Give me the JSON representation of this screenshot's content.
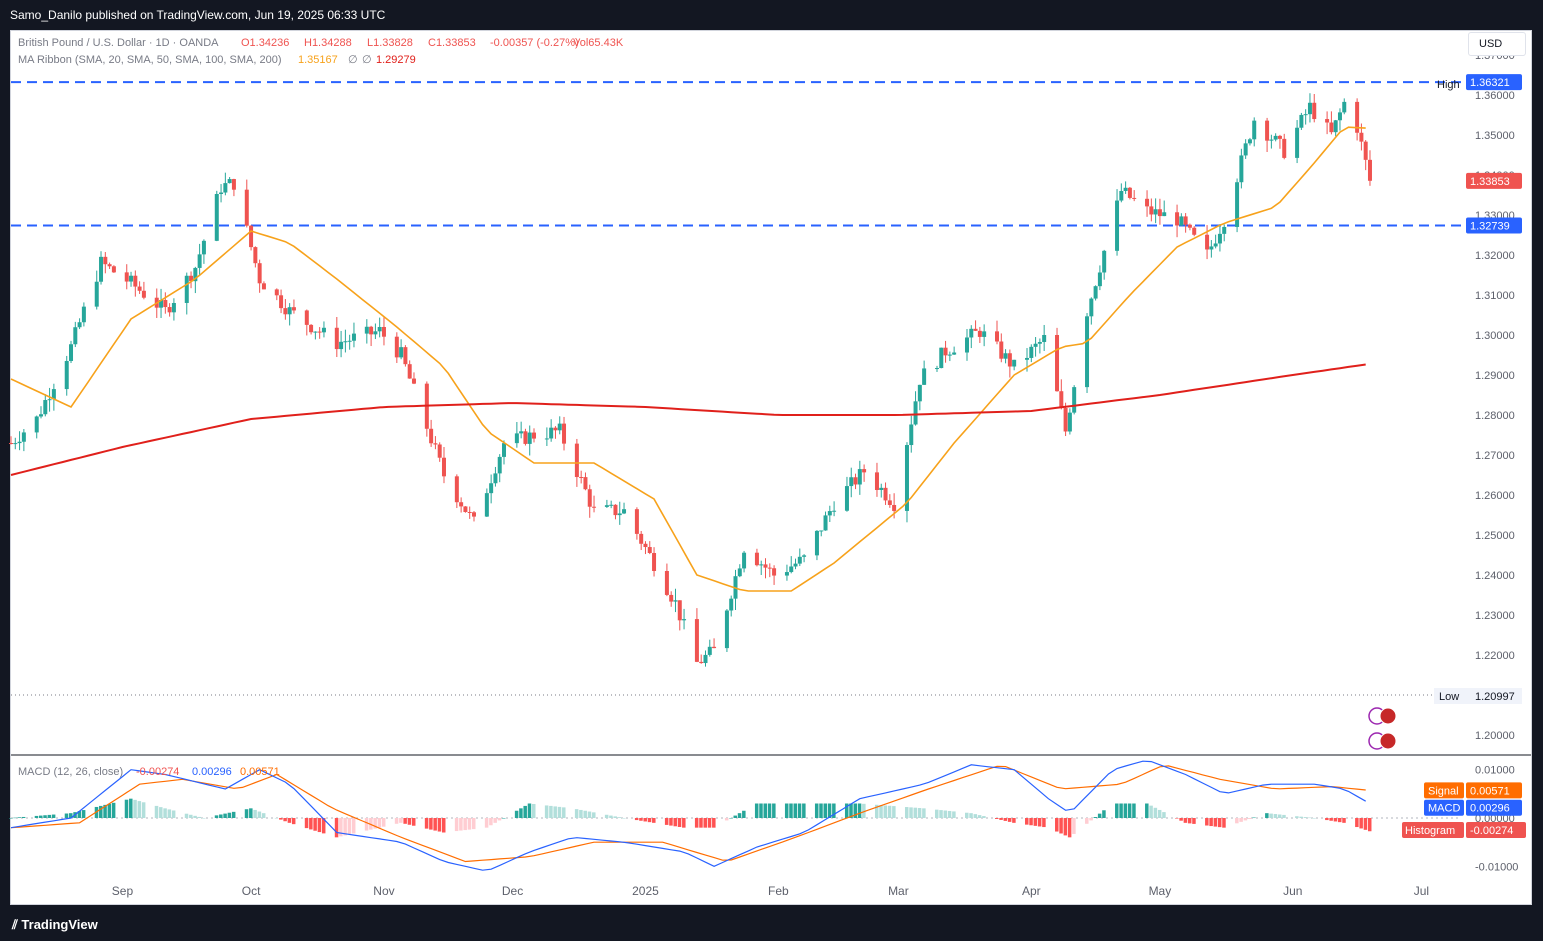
{
  "header": {
    "publisher": "Samo_Danilo published on TradingView.com, Jun 19, 2025 06:33 UTC"
  },
  "footer": {
    "brand": "TradingView"
  },
  "currency_button": "USD",
  "legend": {
    "symbol": "British Pound / U.S. Dollar · 1D · OANDA",
    "o": "O1.34236",
    "h": "H1.34288",
    "l": "L1.33828",
    "c": "C1.33853",
    "chg": "-0.00357 (-0.27%)",
    "vol": "Vol65.43K",
    "ma": "MA Ribbon (SMA, 20, SMA, 50, SMA, 100, SMA, 200)",
    "ma_v1": "1.35167",
    "ma_v2": "∅",
    "ma_v3": "∅",
    "ma_v4": "1.29279",
    "macd": "MACD (12, 26, close)",
    "macd_h": "-0.00274",
    "macd_m": "0.00296",
    "macd_s": "0.00571"
  },
  "colors": {
    "up": "#26a69a",
    "down": "#ef5350",
    "sma20": "#f7a21b",
    "sma200": "#e0201b",
    "macd": "#2962ff",
    "signal": "#ff6d00",
    "level": "#2962ff"
  },
  "chart_data": [
    {
      "type": "candlestick",
      "title": "British Pound / U.S. Dollar · 1D · OANDA",
      "ylim": [
        1.195,
        1.37
      ],
      "yticks": [
        1.2,
        1.21,
        1.22,
        1.23,
        1.24,
        1.25,
        1.26,
        1.27,
        1.28,
        1.29,
        1.3,
        1.31,
        1.32,
        1.33,
        1.34,
        1.35,
        1.36,
        1.37
      ],
      "ytick_labels": [
        "1.20000",
        "1.21000",
        "1.22000",
        "1.23000",
        "1.24000",
        "1.25000",
        "1.26000",
        "1.27000",
        "1.28000",
        "1.29000",
        "1.30000",
        "1.31000",
        "1.32000",
        "1.33000",
        "1.34000",
        "1.35000",
        "1.36000",
        "1.37000"
      ],
      "xticks": [
        "Sep",
        "Oct",
        "Nov",
        "Dec",
        "2025",
        "Feb",
        "Mar",
        "Apr",
        "May",
        "Jun",
        "Jul"
      ],
      "x_range": [
        "2024-08-06",
        "2025-07-10"
      ],
      "close_path": [
        [
          "2024-08-06",
          1.273
        ],
        [
          "2024-08-12",
          1.279
        ],
        [
          "2024-08-20",
          1.297
        ],
        [
          "2024-08-27",
          1.318
        ],
        [
          "2024-09-03",
          1.313
        ],
        [
          "2024-09-11",
          1.306
        ],
        [
          "2024-09-18",
          1.317
        ],
        [
          "2024-09-24",
          1.337
        ],
        [
          "2024-09-27",
          1.338
        ],
        [
          "2024-10-03",
          1.314
        ],
        [
          "2024-10-10",
          1.306
        ],
        [
          "2024-10-21",
          1.298
        ],
        [
          "2024-10-31",
          1.301
        ],
        [
          "2024-11-05",
          1.295
        ],
        [
          "2024-11-15",
          1.265
        ],
        [
          "2024-11-22",
          1.253
        ],
        [
          "2024-11-29",
          1.273
        ],
        [
          "2024-12-06",
          1.275
        ],
        [
          "2024-12-12",
          1.276
        ],
        [
          "2024-12-20",
          1.256
        ],
        [
          "2024-12-27",
          1.256
        ],
        [
          "2025-01-03",
          1.243
        ],
        [
          "2025-01-08",
          1.233
        ],
        [
          "2025-01-13",
          1.218
        ],
        [
          "2025-01-17",
          1.221
        ],
        [
          "2025-01-24",
          1.247
        ],
        [
          "2025-01-31",
          1.24
        ],
        [
          "2025-02-07",
          1.244
        ],
        [
          "2025-02-14",
          1.258
        ],
        [
          "2025-02-21",
          1.266
        ],
        [
          "2025-02-28",
          1.258
        ],
        [
          "2025-03-06",
          1.289
        ],
        [
          "2025-03-12",
          1.296
        ],
        [
          "2025-03-20",
          1.301
        ],
        [
          "2025-03-28",
          1.292
        ],
        [
          "2025-04-04",
          1.299
        ],
        [
          "2025-04-09",
          1.276
        ],
        [
          "2025-04-14",
          1.306
        ],
        [
          "2025-04-22",
          1.336
        ],
        [
          "2025-04-28",
          1.331
        ],
        [
          "2025-05-05",
          1.329
        ],
        [
          "2025-05-12",
          1.32
        ],
        [
          "2025-05-16",
          1.329
        ],
        [
          "2025-05-23",
          1.354
        ],
        [
          "2025-05-30",
          1.346
        ],
        [
          "2025-06-05",
          1.357
        ],
        [
          "2025-06-10",
          1.35
        ],
        [
          "2025-06-13",
          1.358
        ],
        [
          "2025-06-16",
          1.352
        ],
        [
          "2025-06-19",
          1.33853
        ]
      ],
      "price_labels": {
        "high_label": "High",
        "high": "1.36326",
        "level_high": "1.36321",
        "last": "1.33853",
        "level_low": "1.32739",
        "low_label": "Low",
        "low": "1.20997"
      },
      "high_value": 1.36326,
      "low_value": 1.20997,
      "level_high_value": 1.36321,
      "level_low_value": 1.32739,
      "last_value": 1.33853,
      "series": [
        {
          "name": "SMA 20",
          "values_path": [
            [
              "2024-08-06",
              1.289
            ],
            [
              "2024-08-20",
              1.282
            ],
            [
              "2024-09-03",
              1.304
            ],
            [
              "2024-09-18",
              1.314
            ],
            [
              "2024-10-01",
              1.326
            ],
            [
              "2024-10-10",
              1.323
            ],
            [
              "2024-10-21",
              1.314
            ],
            [
              "2024-11-04",
              1.302
            ],
            [
              "2024-11-15",
              1.292
            ],
            [
              "2024-11-25",
              1.276
            ],
            [
              "2024-12-06",
              1.268
            ],
            [
              "2024-12-20",
              1.268
            ],
            [
              "2025-01-03",
              1.259
            ],
            [
              "2025-01-13",
              1.24
            ],
            [
              "2025-01-24",
              1.236
            ],
            [
              "2025-02-04",
              1.236
            ],
            [
              "2025-02-14",
              1.243
            ],
            [
              "2025-03-03",
              1.258
            ],
            [
              "2025-03-14",
              1.273
            ],
            [
              "2025-03-28",
              1.29
            ],
            [
              "2025-04-08",
              1.297
            ],
            [
              "2025-04-14",
              1.298
            ],
            [
              "2025-04-24",
              1.31
            ],
            [
              "2025-05-05",
              1.322
            ],
            [
              "2025-05-16",
              1.328
            ],
            [
              "2025-05-28",
              1.332
            ],
            [
              "2025-06-06",
              1.343
            ],
            [
              "2025-06-13",
              1.352
            ],
            [
              "2025-06-19",
              1.35167
            ]
          ]
        },
        {
          "name": "SMA 200",
          "values_path": [
            [
              "2024-08-06",
              1.265
            ],
            [
              "2024-09-01",
              1.272
            ],
            [
              "2024-10-01",
              1.279
            ],
            [
              "2024-11-01",
              1.282
            ],
            [
              "2024-12-01",
              1.283
            ],
            [
              "2025-01-01",
              1.282
            ],
            [
              "2025-02-01",
              1.28
            ],
            [
              "2025-03-01",
              1.28
            ],
            [
              "2025-04-01",
              1.281
            ],
            [
              "2025-05-01",
              1.285
            ],
            [
              "2025-06-01",
              1.29
            ],
            [
              "2025-06-19",
              1.29279
            ]
          ]
        }
      ]
    },
    {
      "type": "line",
      "title": "MACD (12, 26, close)",
      "ylim": [
        -0.012,
        0.012
      ],
      "yticks": [
        0.01,
        0.0,
        -0.01
      ],
      "ytick_labels": [
        "0.01000",
        "0.00000",
        "-0.01000"
      ],
      "labels": {
        "signal": "Signal",
        "macd": "MACD",
        "histogram": "Histogram",
        "signal_value": "0.00571",
        "macd_value": "0.00296",
        "histogram_value": "-0.00274"
      },
      "series": [
        {
          "name": "MACD",
          "values_path": [
            [
              "2024-08-06",
              -0.002
            ],
            [
              "2024-08-20",
              0.0
            ],
            [
              "2024-09-03",
              0.01
            ],
            [
              "2024-09-11",
              0.009
            ],
            [
              "2024-09-25",
              0.006
            ],
            [
              "2024-10-03",
              0.01
            ],
            [
              "2024-10-10",
              0.007
            ],
            [
              "2024-10-21",
              -0.003
            ],
            [
              "2024-11-05",
              -0.005
            ],
            [
              "2024-11-15",
              -0.009
            ],
            [
              "2024-11-25",
              -0.011
            ],
            [
              "2024-12-05",
              -0.007
            ],
            [
              "2024-12-15",
              -0.004
            ],
            [
              "2024-12-27",
              -0.005
            ],
            [
              "2025-01-10",
              -0.007
            ],
            [
              "2025-01-17",
              -0.01
            ],
            [
              "2025-01-27",
              -0.006
            ],
            [
              "2025-02-07",
              -0.003
            ],
            [
              "2025-02-20",
              0.004
            ],
            [
              "2025-03-07",
              0.007
            ],
            [
              "2025-03-18",
              0.011
            ],
            [
              "2025-03-28",
              0.01
            ],
            [
              "2025-04-05",
              0.004
            ],
            [
              "2025-04-10",
              0.001
            ],
            [
              "2025-04-20",
              0.01
            ],
            [
              "2025-04-28",
              0.012
            ],
            [
              "2025-05-07",
              0.009
            ],
            [
              "2025-05-16",
              0.005
            ],
            [
              "2025-05-26",
              0.007
            ],
            [
              "2025-06-06",
              0.007
            ],
            [
              "2025-06-13",
              0.006
            ],
            [
              "2025-06-19",
              0.00296
            ]
          ]
        },
        {
          "name": "Signal",
          "values_path": [
            [
              "2024-08-06",
              -0.002
            ],
            [
              "2024-08-22",
              -0.001
            ],
            [
              "2024-09-05",
              0.007
            ],
            [
              "2024-09-15",
              0.008
            ],
            [
              "2024-09-28",
              0.006
            ],
            [
              "2024-10-07",
              0.009
            ],
            [
              "2024-10-20",
              0.002
            ],
            [
              "2024-11-05",
              -0.004
            ],
            [
              "2024-11-20",
              -0.009
            ],
            [
              "2024-12-05",
              -0.008
            ],
            [
              "2024-12-20",
              -0.005
            ],
            [
              "2025-01-05",
              -0.005
            ],
            [
              "2025-01-20",
              -0.009
            ],
            [
              "2025-02-05",
              -0.004
            ],
            [
              "2025-02-20",
              0.001
            ],
            [
              "2025-03-08",
              0.006
            ],
            [
              "2025-03-25",
              0.011
            ],
            [
              "2025-04-08",
              0.006
            ],
            [
              "2025-04-22",
              0.007
            ],
            [
              "2025-05-02",
              0.011
            ],
            [
              "2025-05-15",
              0.008
            ],
            [
              "2025-05-28",
              0.006
            ],
            [
              "2025-06-10",
              0.0065
            ],
            [
              "2025-06-19",
              0.00571
            ]
          ]
        },
        {
          "name": "Histogram",
          "values_path": [
            [
              "2024-08-06",
              0.0
            ],
            [
              "2024-08-20",
              0.001
            ],
            [
              "2024-09-03",
              0.004
            ],
            [
              "2024-09-11",
              0.002
            ],
            [
              "2024-09-20",
              0.0
            ],
            [
              "2024-10-01",
              0.002
            ],
            [
              "2024-10-10",
              -0.001
            ],
            [
              "2024-10-21",
              -0.004
            ],
            [
              "2024-11-05",
              -0.001
            ],
            [
              "2024-11-15",
              -0.003
            ],
            [
              "2024-11-25",
              -0.002
            ],
            [
              "2024-12-05",
              0.003
            ],
            [
              "2024-12-15",
              0.002
            ],
            [
              "2024-12-27",
              0.0
            ],
            [
              "2025-01-10",
              -0.002
            ],
            [
              "2025-01-17",
              -0.002
            ],
            [
              "2025-01-27",
              0.003
            ],
            [
              "2025-02-07",
              0.003
            ],
            [
              "2025-02-20",
              0.003
            ],
            [
              "2025-03-07",
              0.002
            ],
            [
              "2025-03-18",
              0.001
            ],
            [
              "2025-03-28",
              -0.001
            ],
            [
              "2025-04-05",
              -0.002
            ],
            [
              "2025-04-10",
              -0.004
            ],
            [
              "2025-04-20",
              0.003
            ],
            [
              "2025-04-28",
              0.003
            ],
            [
              "2025-05-07",
              -0.001
            ],
            [
              "2025-05-16",
              -0.002
            ],
            [
              "2025-05-26",
              0.001
            ],
            [
              "2025-06-06",
              0.0
            ],
            [
              "2025-06-13",
              -0.001
            ],
            [
              "2025-06-19",
              -0.00274
            ]
          ]
        }
      ]
    }
  ]
}
